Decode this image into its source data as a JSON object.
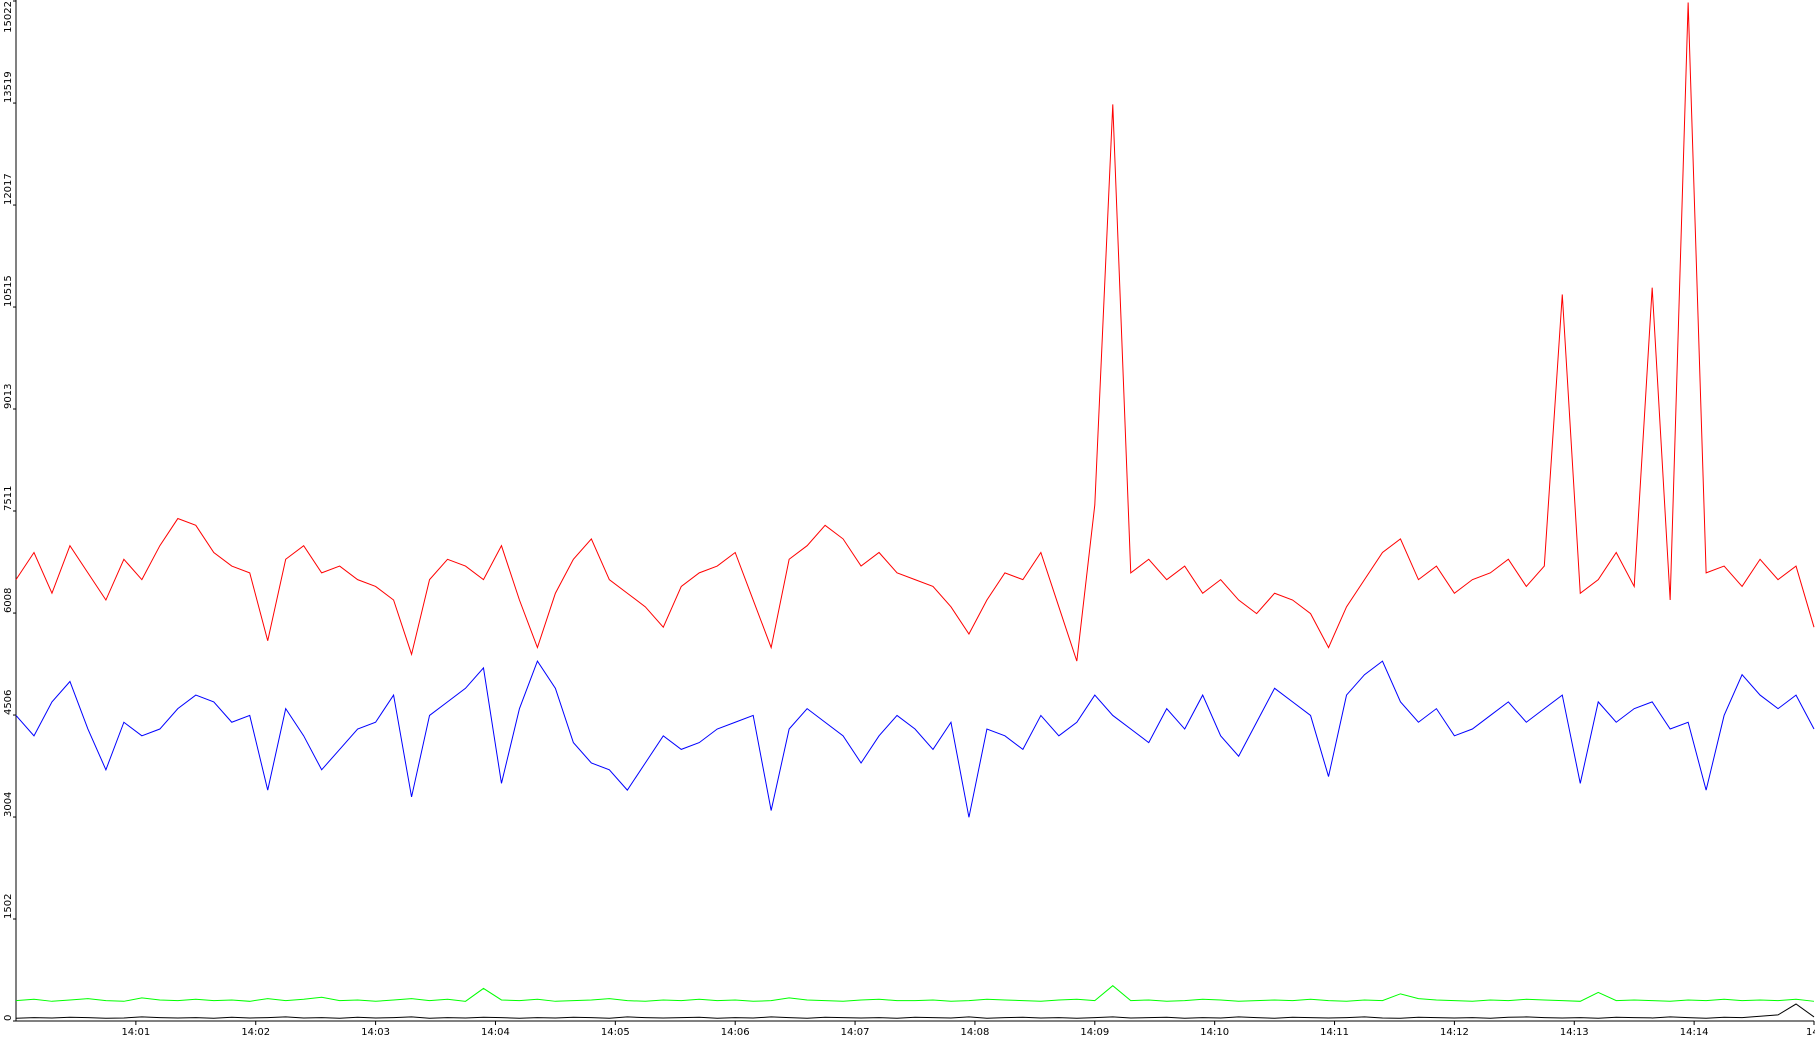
{
  "chart_data": {
    "type": "line",
    "x": [
      840,
      840.15,
      840.3,
      840.45,
      840.6,
      840.75,
      840.9,
      841.05,
      841.2,
      841.35,
      841.5,
      841.65,
      841.8,
      841.95,
      842.1,
      842.25,
      842.4,
      842.55,
      842.7,
      842.85,
      843,
      843.15,
      843.3,
      843.45,
      843.6,
      843.75,
      843.9,
      844.05,
      844.2,
      844.35,
      844.5,
      844.65,
      844.8,
      844.95,
      845.1,
      845.25,
      845.4,
      845.55,
      845.7,
      845.85,
      846,
      846.15,
      846.3,
      846.45,
      846.6,
      846.75,
      846.9,
      847.05,
      847.2,
      847.35,
      847.5,
      847.65,
      847.8,
      847.95,
      848.1,
      848.25,
      848.4,
      848.55,
      848.7,
      848.85,
      849,
      849.15,
      849.3,
      849.45,
      849.6,
      849.75,
      849.9,
      850.05,
      850.2,
      850.35,
      850.5,
      850.65,
      850.8,
      850.95,
      851.1,
      851.25,
      851.4,
      851.55,
      851.7,
      851.85,
      852,
      852.15,
      852.3,
      852.45,
      852.6,
      852.75,
      852.9,
      853.05,
      853.2,
      853.35,
      853.5,
      853.65,
      853.8,
      853.95,
      854.1,
      854.25,
      854.4,
      854.55,
      854.7,
      854.85,
      855
    ],
    "series": [
      {
        "color": "#ff0000",
        "values": [
          6500,
          6900,
          6300,
          7000,
          6600,
          6200,
          6800,
          6500,
          7000,
          7400,
          7300,
          6900,
          6700,
          6600,
          5600,
          6800,
          7000,
          6600,
          6700,
          6500,
          6400,
          6200,
          5400,
          6500,
          6800,
          6700,
          6500,
          7000,
          6200,
          5500,
          6300,
          6800,
          7100,
          6500,
          6300,
          6100,
          5800,
          6400,
          6600,
          6700,
          6900,
          6200,
          5500,
          6800,
          7000,
          7300,
          7100,
          6700,
          6900,
          6600,
          6500,
          6400,
          6100,
          5700,
          6200,
          6600,
          6500,
          6900,
          6100,
          5300,
          7600,
          13500,
          6600,
          6800,
          6500,
          6700,
          6300,
          6500,
          6200,
          6000,
          6300,
          6200,
          6000,
          5500,
          6100,
          6500,
          6900,
          7100,
          6500,
          6700,
          6300,
          6500,
          6600,
          6800,
          6400,
          6700,
          10700,
          6300,
          6500,
          6900,
          6400,
          10800,
          6200,
          15000,
          6600,
          6700,
          6400,
          6800,
          6500,
          6700,
          5800
        ]
      },
      {
        "color": "#0000ff",
        "values": [
          4500,
          4200,
          4700,
          5000,
          4300,
          3700,
          4400,
          4200,
          4300,
          4600,
          4800,
          4700,
          4400,
          4500,
          3400,
          4600,
          4200,
          3700,
          4000,
          4300,
          4400,
          4800,
          3300,
          4500,
          4700,
          4900,
          5200,
          3500,
          4600,
          5300,
          4900,
          4100,
          3800,
          3700,
          3400,
          3800,
          4200,
          4000,
          4100,
          4300,
          4400,
          4500,
          3100,
          4300,
          4600,
          4400,
          4200,
          3800,
          4200,
          4500,
          4300,
          4000,
          4400,
          3000,
          4300,
          4200,
          4000,
          4500,
          4200,
          4400,
          4800,
          4500,
          4300,
          4100,
          4600,
          4300,
          4800,
          4200,
          3900,
          4400,
          4900,
          4700,
          4500,
          3600,
          4800,
          5100,
          5300,
          4700,
          4400,
          4600,
          4200,
          4300,
          4500,
          4700,
          4400,
          4600,
          4800,
          3500,
          4700,
          4400,
          4600,
          4700,
          4300,
          4400,
          3400,
          4500,
          5100,
          4800,
          4600,
          4800,
          4300
        ]
      },
      {
        "color": "#00ff00",
        "values": [
          300,
          320,
          290,
          310,
          330,
          300,
          290,
          340,
          310,
          300,
          320,
          300,
          310,
          290,
          330,
          300,
          320,
          350,
          300,
          310,
          290,
          310,
          330,
          300,
          320,
          290,
          480,
          310,
          300,
          320,
          290,
          300,
          310,
          330,
          300,
          290,
          310,
          300,
          320,
          300,
          310,
          290,
          300,
          340,
          310,
          300,
          290,
          310,
          320,
          300,
          300,
          310,
          290,
          300,
          320,
          310,
          300,
          290,
          310,
          320,
          300,
          520,
          300,
          310,
          290,
          300,
          320,
          310,
          290,
          300,
          310,
          300,
          320,
          300,
          290,
          310,
          300,
          400,
          330,
          310,
          300,
          290,
          310,
          300,
          320,
          310,
          300,
          290,
          420,
          300,
          310,
          300,
          290,
          310,
          300,
          320,
          300,
          310,
          300,
          320,
          290
        ]
      },
      {
        "color": "#000000",
        "values": [
          40,
          50,
          45,
          55,
          50,
          40,
          45,
          60,
          50,
          45,
          50,
          40,
          55,
          45,
          50,
          60,
          45,
          50,
          40,
          55,
          45,
          50,
          60,
          40,
          50,
          45,
          55,
          50,
          40,
          50,
          45,
          55,
          50,
          40,
          60,
          50,
          45,
          50,
          55,
          40,
          50,
          45,
          60,
          50,
          40,
          55,
          50,
          45,
          50,
          40,
          55,
          50,
          45,
          60,
          40,
          50,
          55,
          45,
          50,
          40,
          50,
          60,
          45,
          50,
          55,
          40,
          50,
          45,
          60,
          50,
          40,
          55,
          50,
          45,
          50,
          60,
          45,
          40,
          55,
          50,
          45,
          50,
          40,
          55,
          60,
          50,
          45,
          50,
          40,
          55,
          50,
          45,
          60,
          50,
          40,
          55,
          50,
          70,
          90,
          250,
          60
        ]
      }
    ],
    "xlim": [
      840,
      855
    ],
    "xticks": [
      {
        "value": 841,
        "label": "14:01"
      },
      {
        "value": 842,
        "label": "14:02"
      },
      {
        "value": 843,
        "label": "14:03"
      },
      {
        "value": 844,
        "label": "14:04"
      },
      {
        "value": 845,
        "label": "14:05"
      },
      {
        "value": 846,
        "label": "14:06"
      },
      {
        "value": 847,
        "label": "14:07"
      },
      {
        "value": 848,
        "label": "14:08"
      },
      {
        "value": 849,
        "label": "14:09"
      },
      {
        "value": 850,
        "label": "14:10"
      },
      {
        "value": 851,
        "label": "14:11"
      },
      {
        "value": 852,
        "label": "14:12"
      },
      {
        "value": 853,
        "label": "14:13"
      },
      {
        "value": 854,
        "label": "14:14"
      },
      {
        "value": 855,
        "label": "14:"
      }
    ],
    "ylim": [
      0,
      15022
    ],
    "yticks": [
      0,
      1502,
      3004,
      4506,
      6008,
      7511,
      9013,
      10515,
      12017,
      13519,
      15022
    ]
  }
}
